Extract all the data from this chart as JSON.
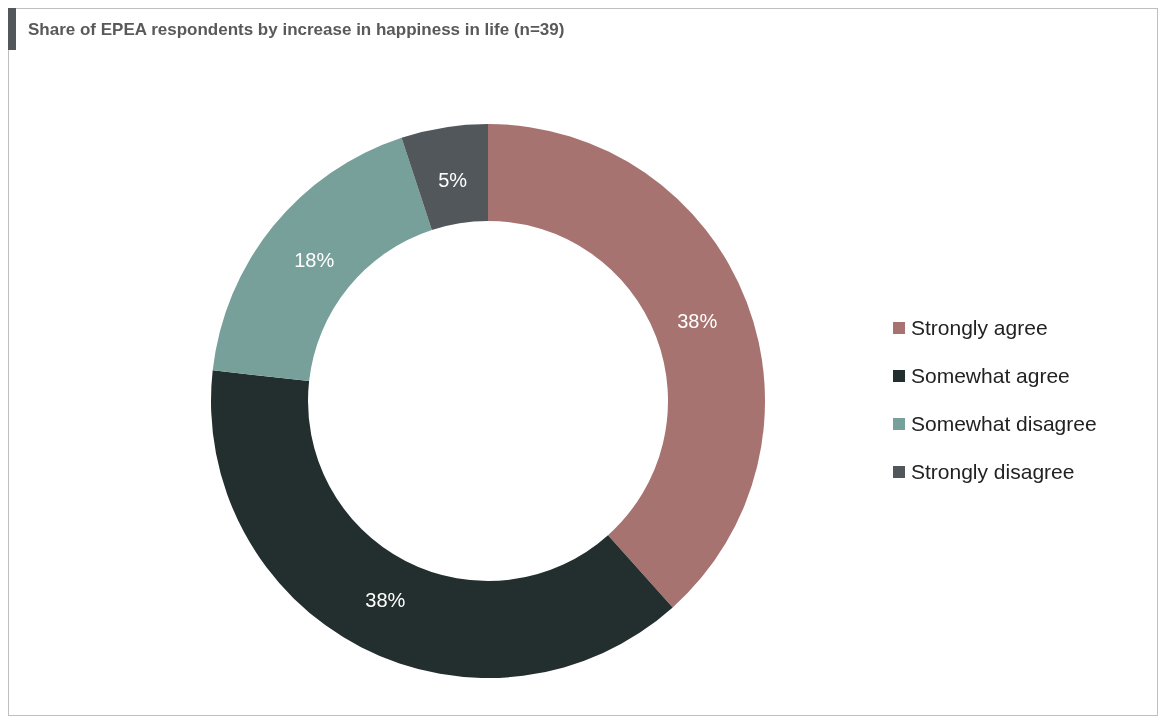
{
  "chart_data": {
    "type": "donut",
    "title": "Share of EPEA respondents by increase in happiness in life (n=39)",
    "categories": [
      "Strongly agree",
      "Somewhat agree",
      "Somewhat disagree",
      "Strongly disagree"
    ],
    "values": [
      38,
      38,
      18,
      5
    ],
    "colors": [
      "#a77371",
      "#232e2e",
      "#78a09b",
      "#52575c"
    ],
    "value_labels": [
      "38%",
      "38%",
      "18%",
      "5%"
    ],
    "legend": "right"
  }
}
